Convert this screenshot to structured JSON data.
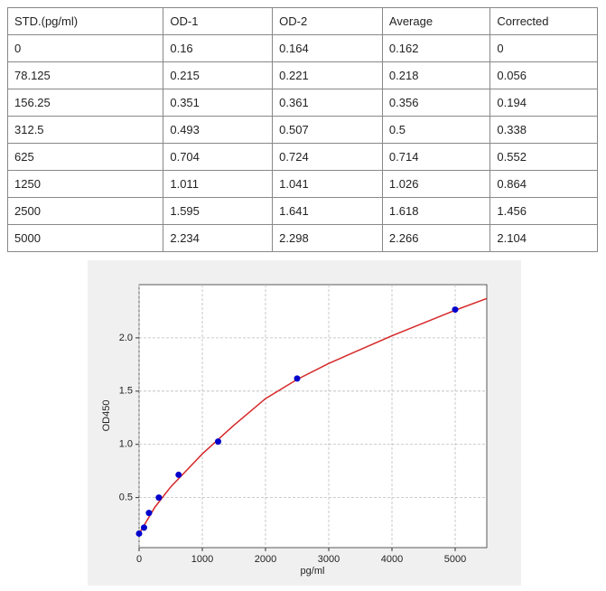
{
  "table": {
    "header": [
      "STD.(pg/ml)",
      "OD-1",
      "OD-2",
      "Average",
      "Corrected"
    ],
    "rows": [
      [
        0,
        0.16,
        0.164,
        0.162,
        0
      ],
      [
        78.125,
        0.215,
        0.221,
        0.218,
        0.056
      ],
      [
        156.25,
        0.351,
        0.361,
        0.356,
        0.194
      ],
      [
        312.5,
        0.493,
        0.507,
        0.5,
        0.338
      ],
      [
        625,
        0.704,
        0.724,
        0.714,
        0.552
      ],
      [
        1250,
        1.011,
        1.041,
        1.026,
        0.864
      ],
      [
        2500,
        1.595,
        1.641,
        1.618,
        1.456
      ],
      [
        5000,
        2.234,
        2.298,
        2.266,
        2.104
      ]
    ]
  },
  "chart_data": {
    "type": "scatter",
    "x_label": "pg/ml",
    "y_label": "OD450",
    "xlim": [
      0,
      5500
    ],
    "ylim": [
      0.03,
      2.5
    ],
    "xticks": [
      0,
      1000,
      2000,
      3000,
      4000,
      5000
    ],
    "yticks": [
      0.5,
      {
        "value": 1,
        "label": "1.0"
      },
      1.5,
      {
        "value": 2,
        "label": "2.0"
      }
    ],
    "grid": true,
    "series": [
      {
        "type": "scatter",
        "color": "#0000cc",
        "x": [
          0,
          78.125,
          156.25,
          312.5,
          625,
          1250,
          2500,
          5000
        ],
        "values": [
          0.162,
          0.218,
          0.356,
          0.5,
          0.714,
          1.026,
          1.618,
          2.266
        ]
      },
      {
        "type": "line",
        "color": "#d62728",
        "x": [
          0,
          250,
          500,
          1000,
          1500,
          2000,
          2500,
          3000,
          3500,
          4000,
          4500,
          5000,
          5500
        ],
        "values": [
          0.16,
          0.41,
          0.6,
          0.91,
          1.18,
          1.43,
          1.61,
          1.76,
          1.89,
          2.02,
          2.14,
          2.26,
          2.37
        ]
      }
    ]
  }
}
